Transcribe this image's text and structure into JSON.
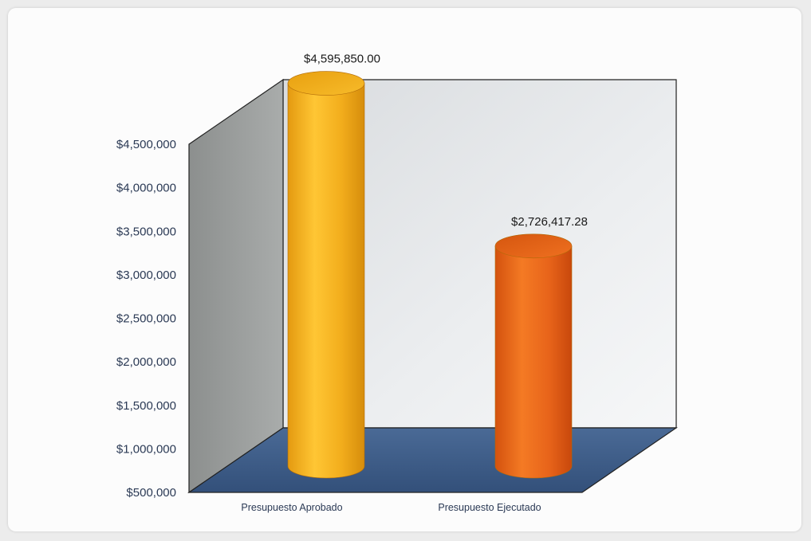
{
  "chart_data": {
    "type": "bar",
    "title": "",
    "xlabel": "",
    "ylabel": "",
    "categories": [
      "Presupuesto Aprobado",
      "Presupuesto Ejecutado"
    ],
    "values": [
      4595850.0,
      2726417.28
    ],
    "data_labels": [
      "$4,595,850.00",
      "$2,726,417.28"
    ],
    "bar_colors": [
      "#f4b01c",
      "#e8641a"
    ],
    "ylim": [
      500000,
      4500000
    ],
    "yticks": [
      500000,
      1000000,
      1500000,
      2000000,
      2500000,
      3000000,
      3500000,
      4000000,
      4500000
    ],
    "ytick_labels": [
      "$500,000",
      "$1,000,000",
      "$1,500,000",
      "$2,000,000",
      "$2,500,000",
      "$3,000,000",
      "$3,500,000",
      "$4,000,000",
      "$4,500,000"
    ],
    "grid": false,
    "style": "3d-cylinder",
    "colors": {
      "back_wall": "#e2e4e7",
      "side_wall": "#8e9190",
      "floor": "#3d5b86",
      "axis_text": "#2b3a55"
    }
  }
}
